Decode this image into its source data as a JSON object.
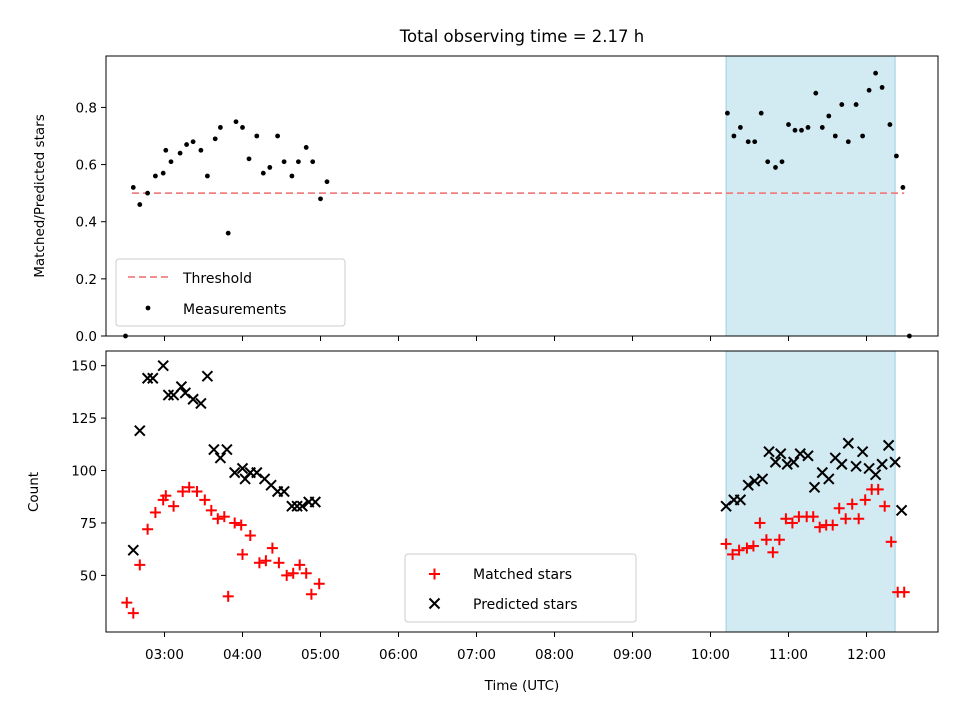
{
  "chart_data": [
    {
      "type": "scatter",
      "title": "Total observing time = 2.17 h",
      "xlabel": "",
      "ylabel": "Matched/Predicted stars",
      "x_unit": "time of day (UTC)",
      "xlim": [
        "02:15",
        "12:55"
      ],
      "ylim": [
        0,
        0.98
      ],
      "yticks": [
        "0.0",
        "0.2",
        "0.4",
        "0.6",
        "0.8"
      ],
      "grid": false,
      "legend_position": "lower-left",
      "shaded_span": {
        "start": "10:12",
        "end": "12:22",
        "color": "#add8e6"
      },
      "threshold": {
        "name": "Threshold",
        "value": 0.5,
        "start": "02:35",
        "end": "12:29",
        "color": "#f08080",
        "style": "dashed"
      },
      "series": [
        {
          "name": "Measurements",
          "marker": "dot",
          "color": "#000000",
          "points": [
            [
              "02:30",
              0.0
            ],
            [
              "02:36",
              0.52
            ],
            [
              "02:41",
              0.46
            ],
            [
              "02:47",
              0.5
            ],
            [
              "02:53",
              0.56
            ],
            [
              "02:59",
              0.57
            ],
            [
              "03:01",
              0.65
            ],
            [
              "03:05",
              0.61
            ],
            [
              "03:12",
              0.64
            ],
            [
              "03:17",
              0.67
            ],
            [
              "03:22",
              0.68
            ],
            [
              "03:28",
              0.65
            ],
            [
              "03:33",
              0.56
            ],
            [
              "03:39",
              0.69
            ],
            [
              "03:43",
              0.73
            ],
            [
              "03:49",
              0.36
            ],
            [
              "03:55",
              0.75
            ],
            [
              "04:00",
              0.73
            ],
            [
              "04:05",
              0.62
            ],
            [
              "04:11",
              0.7
            ],
            [
              "04:16",
              0.57
            ],
            [
              "04:21",
              0.59
            ],
            [
              "04:27",
              0.7
            ],
            [
              "04:32",
              0.61
            ],
            [
              "04:38",
              0.56
            ],
            [
              "04:43",
              0.61
            ],
            [
              "04:49",
              0.66
            ],
            [
              "04:54",
              0.61
            ],
            [
              "05:00",
              0.48
            ],
            [
              "05:05",
              0.54
            ],
            [
              "10:13",
              0.78
            ],
            [
              "10:18",
              0.7
            ],
            [
              "10:23",
              0.73
            ],
            [
              "10:29",
              0.68
            ],
            [
              "10:34",
              0.68
            ],
            [
              "10:39",
              0.78
            ],
            [
              "10:44",
              0.61
            ],
            [
              "10:50",
              0.59
            ],
            [
              "10:55",
              0.61
            ],
            [
              "11:00",
              0.74
            ],
            [
              "11:05",
              0.72
            ],
            [
              "11:10",
              0.72
            ],
            [
              "11:15",
              0.73
            ],
            [
              "11:21",
              0.85
            ],
            [
              "11:26",
              0.73
            ],
            [
              "11:31",
              0.77
            ],
            [
              "11:36",
              0.7
            ],
            [
              "11:41",
              0.81
            ],
            [
              "11:46",
              0.68
            ],
            [
              "11:52",
              0.81
            ],
            [
              "11:57",
              0.7
            ],
            [
              "12:02",
              0.86
            ],
            [
              "12:07",
              0.92
            ],
            [
              "12:12",
              0.87
            ],
            [
              "12:18",
              0.74
            ],
            [
              "12:23",
              0.63
            ],
            [
              "12:28",
              0.52
            ],
            [
              "12:33",
              0.0
            ]
          ]
        }
      ]
    },
    {
      "type": "scatter",
      "title": "",
      "xlabel": "Time (UTC)",
      "ylabel": "Count",
      "x_unit": "time of day (UTC)",
      "xlim": [
        "02:15",
        "12:55"
      ],
      "ylim": [
        23,
        157
      ],
      "xticks": [
        "03:00",
        "04:00",
        "05:00",
        "06:00",
        "07:00",
        "08:00",
        "09:00",
        "10:00",
        "11:00",
        "12:00"
      ],
      "yticks": [
        "50",
        "75",
        "100",
        "125",
        "150"
      ],
      "grid": false,
      "legend_position": "lower-center",
      "shaded_span": {
        "start": "10:12",
        "end": "12:22",
        "color": "#add8e6"
      },
      "series": [
        {
          "name": "Matched stars",
          "marker": "plus",
          "color": "#ff0000",
          "points": [
            [
              "02:31",
              37
            ],
            [
              "02:36",
              32
            ],
            [
              "02:41",
              55
            ],
            [
              "02:47",
              72
            ],
            [
              "02:53",
              80
            ],
            [
              "02:59",
              86
            ],
            [
              "03:01",
              88
            ],
            [
              "03:07",
              83
            ],
            [
              "03:14",
              90
            ],
            [
              "03:19",
              92
            ],
            [
              "03:25",
              90
            ],
            [
              "03:31",
              86
            ],
            [
              "03:36",
              81
            ],
            [
              "03:41",
              77
            ],
            [
              "03:46",
              78
            ],
            [
              "03:49",
              40
            ],
            [
              "03:54",
              75
            ],
            [
              "03:59",
              74
            ],
            [
              "04:00",
              60
            ],
            [
              "04:06",
              69
            ],
            [
              "04:13",
              56
            ],
            [
              "04:18",
              57
            ],
            [
              "04:23",
              63
            ],
            [
              "04:28",
              56
            ],
            [
              "04:34",
              50
            ],
            [
              "04:39",
              51
            ],
            [
              "04:44",
              55
            ],
            [
              "04:49",
              51
            ],
            [
              "04:53",
              41
            ],
            [
              "04:59",
              46
            ],
            [
              "10:12",
              65
            ],
            [
              "10:17",
              60
            ],
            [
              "10:22",
              62
            ],
            [
              "10:28",
              63
            ],
            [
              "10:33",
              64
            ],
            [
              "10:38",
              75
            ],
            [
              "10:43",
              67
            ],
            [
              "10:48",
              61
            ],
            [
              "10:53",
              67
            ],
            [
              "10:58",
              77
            ],
            [
              "11:03",
              75
            ],
            [
              "11:08",
              78
            ],
            [
              "11:14",
              78
            ],
            [
              "11:19",
              78
            ],
            [
              "11:24",
              73
            ],
            [
              "11:29",
              74
            ],
            [
              "11:34",
              74
            ],
            [
              "11:39",
              82
            ],
            [
              "11:44",
              77
            ],
            [
              "11:49",
              84
            ],
            [
              "11:54",
              77
            ],
            [
              "11:59",
              86
            ],
            [
              "12:04",
              91
            ],
            [
              "12:09",
              91
            ],
            [
              "12:14",
              83
            ],
            [
              "12:19",
              66
            ],
            [
              "12:24",
              42
            ],
            [
              "12:29",
              42
            ]
          ]
        },
        {
          "name": "Predicted stars",
          "marker": "x",
          "color": "#000000",
          "points": [
            [
              "02:36",
              62
            ],
            [
              "02:41",
              119
            ],
            [
              "02:47",
              144
            ],
            [
              "02:51",
              144
            ],
            [
              "02:59",
              150
            ],
            [
              "03:03",
              136
            ],
            [
              "03:07",
              136
            ],
            [
              "03:13",
              140
            ],
            [
              "03:16",
              137
            ],
            [
              "03:22",
              134
            ],
            [
              "03:28",
              132
            ],
            [
              "03:33",
              145
            ],
            [
              "03:38",
              110
            ],
            [
              "03:43",
              106
            ],
            [
              "03:48",
              110
            ],
            [
              "03:54",
              99
            ],
            [
              "04:00",
              101
            ],
            [
              "04:02",
              96
            ],
            [
              "04:06",
              99
            ],
            [
              "04:11",
              99
            ],
            [
              "04:17",
              96
            ],
            [
              "04:22",
              93
            ],
            [
              "04:27",
              90
            ],
            [
              "04:32",
              90
            ],
            [
              "04:38",
              83
            ],
            [
              "04:42",
              83
            ],
            [
              "04:46",
              83
            ],
            [
              "04:51",
              85
            ],
            [
              "04:56",
              85
            ],
            [
              "10:12",
              83
            ],
            [
              "10:18",
              86
            ],
            [
              "10:23",
              86
            ],
            [
              "10:29",
              93
            ],
            [
              "10:34",
              95
            ],
            [
              "10:40",
              96
            ],
            [
              "10:45",
              109
            ],
            [
              "10:50",
              104
            ],
            [
              "10:54",
              108
            ],
            [
              "10:59",
              103
            ],
            [
              "11:04",
              104
            ],
            [
              "11:09",
              108
            ],
            [
              "11:15",
              107
            ],
            [
              "11:20",
              92
            ],
            [
              "11:26",
              99
            ],
            [
              "11:31",
              96
            ],
            [
              "11:36",
              106
            ],
            [
              "11:41",
              103
            ],
            [
              "11:46",
              113
            ],
            [
              "11:52",
              102
            ],
            [
              "11:57",
              109
            ],
            [
              "12:02",
              101
            ],
            [
              "12:07",
              98
            ],
            [
              "12:12",
              103
            ],
            [
              "12:17",
              112
            ],
            [
              "12:22",
              104
            ],
            [
              "12:27",
              81
            ]
          ]
        }
      ]
    }
  ]
}
